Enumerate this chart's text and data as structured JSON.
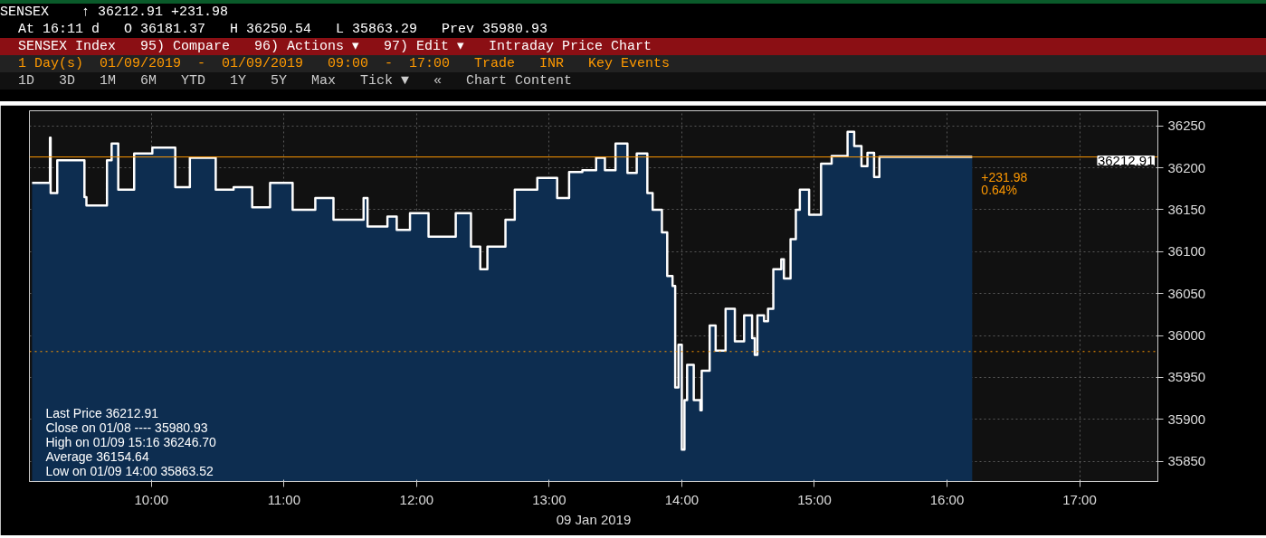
{
  "chart_data": {
    "type": "area",
    "title": "SENSEX",
    "annotations": [
      "↑ 36212.91   +231.98",
      "At 16:11 d   O 36181.37   H 36250.54   L 35863.29   Prev 35980.93",
      "SENSEX Index   95) Compare   96) Actions ▾   97) Edit ▾   Intraday Price Chart",
      "1 Day(s)  01/09/2019  -  01/09/2019   09:00  -  17:00   Trade   INR   Key Events",
      "1D   3D   1M   6M   YTD   1Y   5Y   Max   Tick ▼   «   Chart Content",
      "Last Price                      36212.91",
      "Close on 01/08 ----        35980.93",
      "High on 01/09 15:16     36246.70",
      "Average                          36154.64",
      "Low on 01/09 14:00      35863.52",
      "+231.98",
      "0.64%"
    ],
    "xlabel": "09 Jan 2019",
    "x": [
      9.1,
      9.235,
      9.24,
      9.29,
      9.495,
      9.51,
      9.665,
      9.7,
      9.75,
      9.87,
      10.007,
      10.18,
      10.29,
      10.485,
      10.62,
      10.76,
      10.895,
      11.065,
      11.236,
      11.373,
      11.6,
      11.63,
      11.78,
      11.85,
      11.95,
      12.09,
      12.295,
      12.41,
      12.48,
      12.534,
      12.67,
      12.74,
      12.91,
      13.06,
      13.15,
      13.25,
      13.354,
      13.42,
      13.5,
      13.59,
      13.66,
      13.74,
      13.78,
      13.85,
      13.89,
      13.93,
      13.95,
      13.975,
      14.0,
      14.02,
      14.04,
      14.09,
      14.14,
      14.15,
      14.21,
      14.255,
      14.33,
      14.4,
      14.47,
      14.53,
      14.55,
      14.57,
      14.62,
      14.65,
      14.69,
      14.75,
      14.77,
      14.82,
      14.86,
      14.89,
      14.96,
      15.05,
      15.13,
      15.25,
      15.3,
      15.355,
      15.4,
      15.45,
      15.49,
      16.19
    ],
    "series": [
      {
        "color": "#0d2d50",
        "values": [
          36182,
          36236,
          36170,
          36209,
          36165,
          36155,
          36209,
          36229,
          36174,
          36217,
          36224,
          36177,
          36212,
          36174,
          36177,
          36153,
          36182,
          36150,
          36164,
          36138,
          36164,
          36130,
          36142,
          36126,
          36146,
          36118,
          36146,
          36106,
          36079,
          36106,
          36138,
          36174,
          36188,
          36164,
          36195,
          36197,
          36212,
          36197,
          36229,
          36194,
          36217,
          36170,
          36150,
          36123,
          36071,
          36059,
          35938,
          35989,
          35864,
          35923,
          35965,
          35923,
          35911,
          35958,
          36012,
          35982,
          36032,
          35993,
          36024,
          35997,
          35977,
          36024,
          36017,
          36032,
          36079,
          36091,
          36068,
          36115,
          36150,
          36174,
          36144,
          36205,
          36214,
          36243,
          36226,
          36202,
          36218,
          36189,
          36213,
          36213
        ]
      },
      {
        "type": "step",
        "color": "#ffffff",
        "values": [
          36182,
          36236,
          36170,
          36209,
          36165,
          36155,
          36209,
          36229,
          36174,
          36217,
          36224,
          36177,
          36212,
          36174,
          36177,
          36153,
          36182,
          36150,
          36164,
          36138,
          36164,
          36130,
          36142,
          36126,
          36146,
          36118,
          36146,
          36106,
          36079,
          36106,
          36138,
          36174,
          36188,
          36164,
          36195,
          36197,
          36212,
          36197,
          36229,
          36194,
          36217,
          36170,
          36150,
          36123,
          36071,
          36059,
          35938,
          35989,
          35864,
          35923,
          35965,
          35923,
          35911,
          35958,
          36012,
          35982,
          36032,
          35993,
          36024,
          35997,
          35977,
          36024,
          36017,
          36032,
          36079,
          36091,
          36068,
          36115,
          36150,
          36174,
          36144,
          36205,
          36214,
          36243,
          36226,
          36202,
          36218,
          36189,
          36213,
          36213
        ]
      }
    ],
    "xlim": [
      9.08,
      17.59
    ],
    "ylim": [
      35826,
      36268
    ],
    "xticks": [
      {
        "value": 10,
        "label": "10:00"
      },
      {
        "value": 11,
        "label": "11:00"
      },
      {
        "value": 12,
        "label": "12:00"
      },
      {
        "value": 13,
        "label": "13:00"
      },
      {
        "value": 14,
        "label": "14:00"
      },
      {
        "value": 15,
        "label": "15:00"
      },
      {
        "value": 16,
        "label": "16:00"
      },
      {
        "value": 17,
        "label": "17:00"
      }
    ],
    "yticks": [
      35850,
      35900,
      35950,
      36000,
      36050,
      36100,
      36150,
      36200,
      36250
    ],
    "ref_lines": [
      {
        "axis": "y",
        "value": 35980.93,
        "color": "#ff9900",
        "line_style": "dotted"
      },
      {
        "axis": "y",
        "value": 36212.91,
        "label": "36212.91",
        "color": "#ff9900",
        "line_style": "solid"
      }
    ],
    "grid": true,
    "line_style": "solid"
  }
}
